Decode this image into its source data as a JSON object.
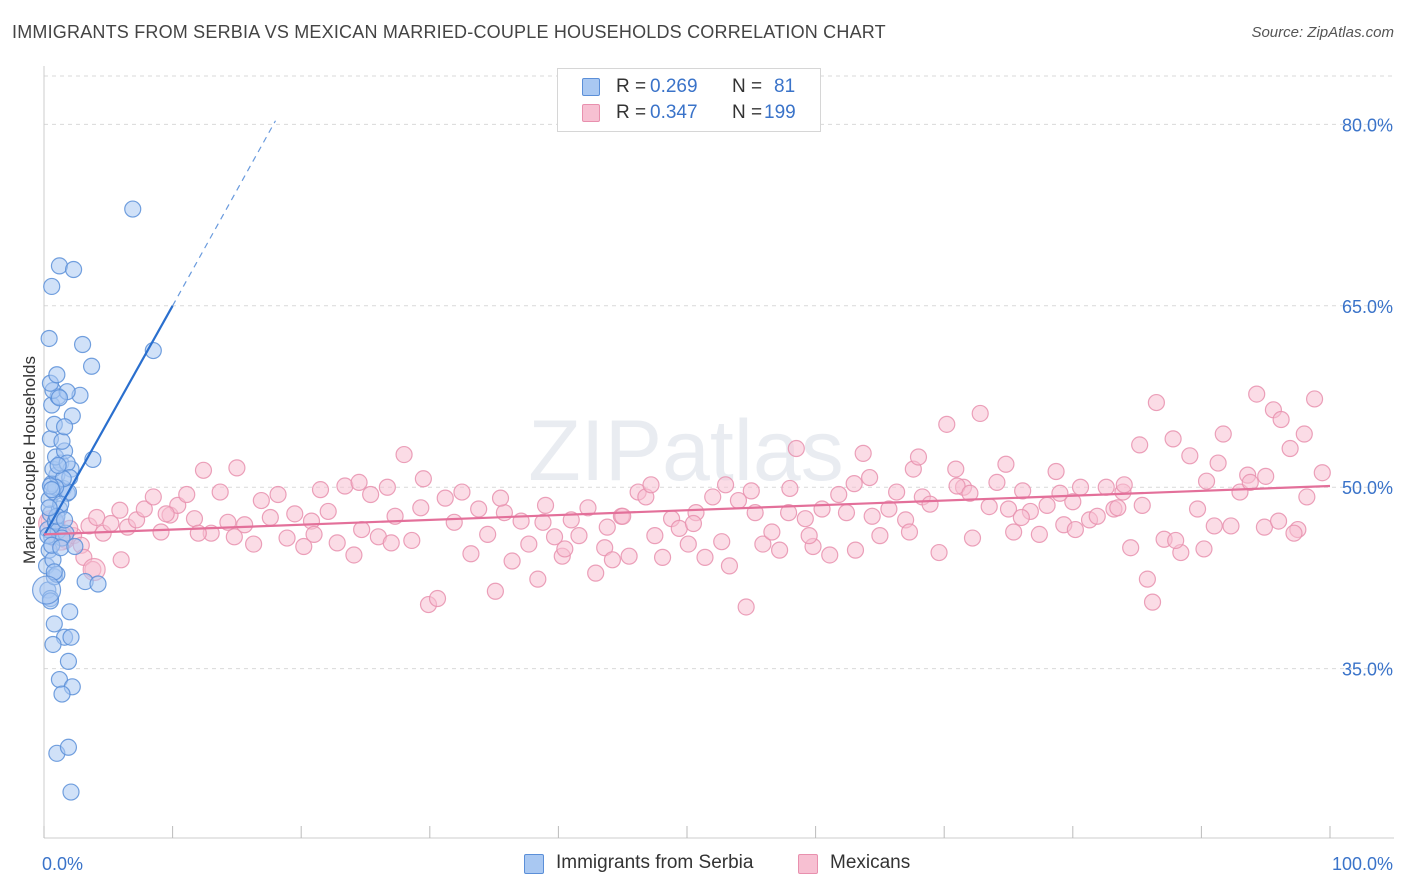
{
  "header": {
    "title": "IMMIGRANTS FROM SERBIA VS MEXICAN MARRIED-COUPLE HOUSEHOLDS CORRELATION CHART",
    "source": "Source: ZipAtlas.com"
  },
  "watermark": "ZIPatlas",
  "colors": {
    "serbia_fill": "#a9c8f2",
    "serbia_stroke": "#5b8fd8",
    "serbia_line": "#2a6fce",
    "mexican_fill": "#f7c0d2",
    "mexican_stroke": "#e890ae",
    "mexican_line": "#e3709a",
    "tick_label": "#3a73c9",
    "grid": "#d9d9d9"
  },
  "stats_box": {
    "serbia": {
      "r_label": "R =",
      "r_value": "0.269",
      "n_label": "N =",
      "n_value": "81"
    },
    "mexican": {
      "r_label": "R =",
      "r_value": "0.347",
      "n_label": "N =",
      "n_value": "199"
    }
  },
  "chart_data": {
    "type": "scatter",
    "title": "IMMIGRANTS FROM SERBIA VS MEXICAN MARRIED-COUPLE HOUSEHOLDS CORRELATION CHART",
    "xlabel": "",
    "ylabel": "Married-couple Households",
    "xlim": [
      0,
      100
    ],
    "ylim": [
      21,
      84
    ],
    "x_tick_labels": [
      "0.0%",
      "100.0%"
    ],
    "y_ticks": [
      35,
      50,
      65,
      80
    ],
    "y_tick_labels": [
      "35.0%",
      "50.0%",
      "65.0%",
      "80.0%"
    ],
    "grid": true,
    "legend": [
      "Immigrants from Serbia",
      "Mexicans"
    ],
    "series": [
      {
        "name": "Immigrants from Serbia",
        "r": 0.269,
        "n": 81,
        "trend": {
          "x0": 0,
          "y0": 46.0,
          "x1": 10,
          "y1": 65.0,
          "dash_to_x": 18,
          "dash_to_y": 80.3
        },
        "points": [
          [
            0.3,
            41.5
          ],
          [
            0.5,
            40.8
          ],
          [
            0.2,
            43.5
          ],
          [
            0.8,
            42.6
          ],
          [
            0.4,
            44.8
          ],
          [
            0.6,
            45.9
          ],
          [
            0.3,
            46.5
          ],
          [
            0.9,
            47.1
          ],
          [
            0.5,
            47.8
          ],
          [
            1.2,
            48.2
          ],
          [
            0.4,
            49.0
          ],
          [
            0.8,
            49.6
          ],
          [
            1.5,
            49.9
          ],
          [
            0.6,
            50.3
          ],
          [
            1.8,
            49.5
          ],
          [
            1.0,
            51.0
          ],
          [
            0.7,
            51.5
          ],
          [
            1.3,
            52.0
          ],
          [
            0.9,
            52.5
          ],
          [
            1.6,
            53.0
          ],
          [
            0.5,
            54.0
          ],
          [
            1.4,
            53.8
          ],
          [
            0.8,
            55.2
          ],
          [
            0.6,
            56.8
          ],
          [
            1.1,
            57.5
          ],
          [
            0.7,
            58.0
          ],
          [
            0.5,
            58.6
          ],
          [
            1.0,
            59.3
          ],
          [
            0.4,
            62.3
          ],
          [
            0.6,
            66.6
          ],
          [
            1.2,
            68.3
          ],
          [
            2.3,
            68.0
          ],
          [
            3.0,
            61.8
          ],
          [
            3.7,
            60.0
          ],
          [
            2.8,
            57.6
          ],
          [
            2.2,
            55.9
          ],
          [
            1.6,
            55.0
          ],
          [
            2.1,
            51.5
          ],
          [
            1.8,
            52.0
          ],
          [
            3.8,
            52.3
          ],
          [
            2.0,
            50.8
          ],
          [
            1.9,
            49.6
          ],
          [
            1.3,
            48.6
          ],
          [
            0.9,
            47.2
          ],
          [
            1.1,
            46.4
          ],
          [
            1.7,
            46.2
          ],
          [
            1.4,
            45.8
          ],
          [
            0.7,
            44.0
          ],
          [
            1.0,
            42.8
          ],
          [
            3.2,
            42.2
          ],
          [
            4.2,
            42.0
          ],
          [
            0.5,
            40.6
          ],
          [
            2.0,
            39.7
          ],
          [
            0.8,
            38.7
          ],
          [
            1.6,
            37.6
          ],
          [
            2.1,
            37.6
          ],
          [
            0.7,
            37.0
          ],
          [
            1.9,
            35.6
          ],
          [
            1.2,
            34.1
          ],
          [
            2.2,
            33.5
          ],
          [
            1.4,
            32.9
          ],
          [
            1.0,
            28.0
          ],
          [
            1.9,
            28.5
          ],
          [
            2.1,
            24.8
          ],
          [
            6.9,
            73.0
          ],
          [
            8.5,
            61.3
          ],
          [
            0.3,
            46.0
          ],
          [
            0.6,
            45.2
          ],
          [
            1.0,
            47.6
          ],
          [
            0.4,
            48.3
          ],
          [
            1.5,
            50.7
          ],
          [
            0.9,
            50.0
          ],
          [
            1.3,
            45.0
          ],
          [
            0.8,
            43.0
          ],
          [
            2.4,
            45.1
          ],
          [
            1.6,
            47.3
          ],
          [
            0.5,
            50.1
          ],
          [
            1.1,
            51.8
          ],
          [
            1.8,
            57.9
          ],
          [
            1.2,
            57.4
          ],
          [
            0.6,
            49.8
          ]
        ]
      },
      {
        "name": "Mexicans",
        "r": 0.347,
        "n": 199,
        "trend": {
          "x0": 0,
          "y0": 46.1,
          "x1": 100,
          "y1": 50.1
        },
        "points": [
          [
            0.4,
            47.2
          ],
          [
            1.0,
            46.3
          ],
          [
            1.7,
            45.6
          ],
          [
            2.3,
            46.0
          ],
          [
            2.9,
            45.2
          ],
          [
            3.5,
            46.8
          ],
          [
            4.1,
            47.5
          ],
          [
            4.6,
            46.2
          ],
          [
            5.2,
            47.0
          ],
          [
            5.9,
            48.1
          ],
          [
            6.5,
            46.7
          ],
          [
            7.2,
            47.3
          ],
          [
            7.8,
            48.2
          ],
          [
            8.5,
            49.2
          ],
          [
            9.1,
            46.3
          ],
          [
            9.8,
            47.7
          ],
          [
            10.4,
            48.5
          ],
          [
            11.1,
            49.4
          ],
          [
            11.7,
            47.4
          ],
          [
            12.4,
            51.4
          ],
          [
            13.0,
            46.2
          ],
          [
            13.7,
            49.6
          ],
          [
            14.3,
            47.1
          ],
          [
            15.0,
            51.6
          ],
          [
            15.6,
            46.9
          ],
          [
            16.3,
            45.3
          ],
          [
            16.9,
            48.9
          ],
          [
            17.6,
            47.5
          ],
          [
            18.2,
            49.4
          ],
          [
            18.9,
            45.8
          ],
          [
            19.5,
            47.8
          ],
          [
            20.2,
            45.1
          ],
          [
            20.8,
            47.2
          ],
          [
            21.5,
            49.8
          ],
          [
            22.1,
            48.0
          ],
          [
            22.8,
            45.4
          ],
          [
            23.4,
            50.1
          ],
          [
            24.1,
            44.4
          ],
          [
            24.7,
            46.5
          ],
          [
            25.4,
            49.4
          ],
          [
            26.0,
            45.9
          ],
          [
            26.7,
            50.0
          ],
          [
            27.3,
            47.6
          ],
          [
            28.0,
            52.7
          ],
          [
            28.6,
            45.6
          ],
          [
            29.3,
            48.3
          ],
          [
            29.9,
            40.3
          ],
          [
            30.6,
            40.8
          ],
          [
            31.2,
            49.1
          ],
          [
            31.9,
            47.1
          ],
          [
            32.5,
            49.6
          ],
          [
            33.2,
            44.5
          ],
          [
            33.8,
            48.2
          ],
          [
            34.5,
            46.1
          ],
          [
            35.1,
            41.4
          ],
          [
            35.8,
            47.9
          ],
          [
            36.4,
            43.9
          ],
          [
            37.1,
            47.2
          ],
          [
            37.7,
            45.3
          ],
          [
            38.4,
            42.4
          ],
          [
            39.0,
            48.5
          ],
          [
            39.7,
            45.9
          ],
          [
            40.3,
            44.3
          ],
          [
            41.0,
            47.3
          ],
          [
            41.6,
            46.0
          ],
          [
            42.3,
            48.3
          ],
          [
            42.9,
            42.9
          ],
          [
            43.6,
            45.0
          ],
          [
            44.2,
            44.0
          ],
          [
            44.9,
            47.6
          ],
          [
            45.5,
            44.3
          ],
          [
            46.2,
            49.6
          ],
          [
            46.8,
            49.2
          ],
          [
            47.5,
            46.0
          ],
          [
            48.1,
            44.2
          ],
          [
            48.8,
            47.4
          ],
          [
            49.4,
            46.6
          ],
          [
            50.1,
            45.3
          ],
          [
            50.7,
            47.9
          ],
          [
            51.4,
            44.2
          ],
          [
            52.0,
            49.2
          ],
          [
            52.7,
            45.5
          ],
          [
            53.3,
            43.5
          ],
          [
            54.0,
            48.9
          ],
          [
            54.6,
            40.1
          ],
          [
            55.3,
            47.9
          ],
          [
            55.9,
            45.3
          ],
          [
            56.6,
            46.3
          ],
          [
            57.2,
            44.8
          ],
          [
            57.9,
            47.9
          ],
          [
            58.5,
            53.2
          ],
          [
            59.2,
            47.4
          ],
          [
            59.8,
            45.1
          ],
          [
            60.5,
            48.2
          ],
          [
            61.1,
            44.4
          ],
          [
            61.8,
            49.4
          ],
          [
            62.4,
            47.9
          ],
          [
            63.1,
            44.8
          ],
          [
            63.7,
            52.8
          ],
          [
            64.4,
            47.6
          ],
          [
            65.0,
            46.0
          ],
          [
            65.7,
            48.2
          ],
          [
            66.3,
            49.6
          ],
          [
            67.0,
            47.3
          ],
          [
            67.6,
            51.5
          ],
          [
            68.3,
            49.2
          ],
          [
            68.9,
            48.6
          ],
          [
            69.6,
            44.6
          ],
          [
            70.2,
            55.2
          ],
          [
            70.9,
            51.5
          ],
          [
            71.5,
            50.0
          ],
          [
            72.2,
            45.8
          ],
          [
            72.8,
            56.1
          ],
          [
            73.5,
            48.4
          ],
          [
            74.1,
            50.4
          ],
          [
            74.8,
            51.9
          ],
          [
            75.4,
            46.3
          ],
          [
            76.1,
            49.7
          ],
          [
            76.7,
            48.0
          ],
          [
            77.4,
            46.1
          ],
          [
            78.0,
            48.5
          ],
          [
            78.7,
            51.3
          ],
          [
            79.3,
            46.9
          ],
          [
            80.0,
            48.8
          ],
          [
            80.6,
            50.0
          ],
          [
            81.3,
            47.3
          ],
          [
            81.9,
            47.6
          ],
          [
            82.6,
            50.0
          ],
          [
            83.2,
            48.2
          ],
          [
            83.9,
            49.6
          ],
          [
            84.5,
            45.0
          ],
          [
            85.2,
            53.5
          ],
          [
            85.8,
            42.4
          ],
          [
            86.5,
            57.0
          ],
          [
            87.1,
            45.7
          ],
          [
            87.8,
            54.0
          ],
          [
            88.4,
            44.6
          ],
          [
            89.1,
            52.6
          ],
          [
            89.7,
            48.2
          ],
          [
            90.4,
            50.5
          ],
          [
            91.0,
            46.8
          ],
          [
            91.7,
            54.4
          ],
          [
            92.3,
            46.8
          ],
          [
            93.0,
            49.6
          ],
          [
            93.6,
            51.0
          ],
          [
            94.3,
            57.7
          ],
          [
            94.9,
            46.7
          ],
          [
            95.6,
            56.4
          ],
          [
            96.2,
            55.6
          ],
          [
            96.9,
            53.2
          ],
          [
            97.5,
            46.5
          ],
          [
            98.2,
            49.2
          ],
          [
            98.8,
            57.3
          ],
          [
            99.4,
            51.2
          ],
          [
            3.1,
            44.2
          ],
          [
            6.0,
            44.0
          ],
          [
            12.0,
            46.2
          ],
          [
            21.0,
            46.1
          ],
          [
            27.0,
            45.4
          ],
          [
            35.5,
            49.1
          ],
          [
            40.5,
            44.9
          ],
          [
            45.0,
            47.6
          ],
          [
            50.5,
            47.0
          ],
          [
            53.0,
            50.2
          ],
          [
            58.0,
            49.9
          ],
          [
            63.0,
            50.3
          ],
          [
            67.3,
            46.3
          ],
          [
            71.0,
            50.1
          ],
          [
            75.0,
            48.2
          ],
          [
            79.0,
            49.5
          ],
          [
            84.0,
            50.2
          ],
          [
            88.0,
            45.6
          ],
          [
            91.3,
            52.0
          ],
          [
            95.0,
            50.9
          ],
          [
            97.2,
            46.2
          ],
          [
            85.4,
            48.5
          ],
          [
            1.4,
            45.8
          ],
          [
            2.0,
            46.6
          ],
          [
            3.8,
            43.2
          ],
          [
            9.5,
            47.8
          ],
          [
            14.8,
            45.9
          ],
          [
            24.5,
            50.4
          ],
          [
            29.5,
            50.7
          ],
          [
            38.8,
            47.1
          ],
          [
            43.8,
            46.7
          ],
          [
            47.2,
            50.2
          ],
          [
            55.0,
            49.7
          ],
          [
            59.5,
            46.0
          ],
          [
            64.2,
            50.8
          ],
          [
            68.0,
            52.5
          ],
          [
            72.0,
            49.5
          ],
          [
            76.0,
            47.5
          ],
          [
            80.2,
            46.5
          ],
          [
            83.5,
            48.3
          ],
          [
            86.2,
            40.5
          ],
          [
            90.2,
            44.9
          ],
          [
            93.8,
            50.4
          ],
          [
            96.0,
            47.2
          ],
          [
            98.0,
            54.4
          ]
        ]
      }
    ]
  }
}
